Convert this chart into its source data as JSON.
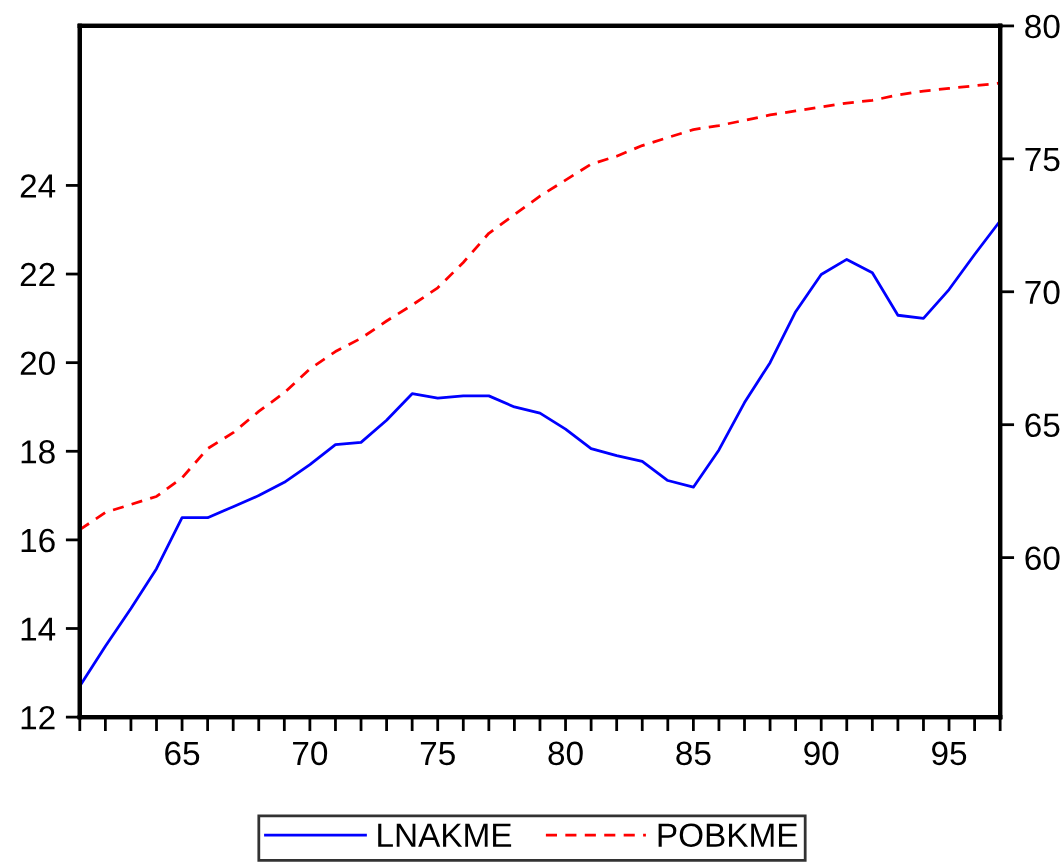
{
  "chart_data": {
    "type": "line",
    "x": [
      61,
      62,
      63,
      64,
      65,
      66,
      67,
      68,
      69,
      70,
      71,
      72,
      73,
      74,
      75,
      76,
      77,
      78,
      79,
      80,
      81,
      82,
      83,
      84,
      85,
      86,
      87,
      88,
      89,
      90,
      91,
      92,
      93,
      94,
      95,
      96,
      97
    ],
    "series": [
      {
        "name": "LNAKME",
        "color": "#0000ff",
        "line_style": "solid",
        "values": [
          12.7,
          13.6,
          14.45,
          15.35,
          16.5,
          16.5,
          16.75,
          17.0,
          17.3,
          17.7,
          18.15,
          18.2,
          18.7,
          19.3,
          19.2,
          19.25,
          19.25,
          19.0,
          18.86,
          18.5,
          18.06,
          17.9,
          17.77,
          17.34,
          17.19,
          18.03,
          19.1,
          20.0,
          21.15,
          21.99,
          22.33,
          22.03,
          21.07,
          21.0,
          21.65,
          22.44,
          23.2
        ]
      },
      {
        "name": "POBKME",
        "color": "#ff0000",
        "line_style": "dashed",
        "axis": "y2",
        "values": [
          61.05,
          61.7,
          62.0,
          62.3,
          63.0,
          64.1,
          64.7,
          65.5,
          66.2,
          67.1,
          67.75,
          68.25,
          68.9,
          69.5,
          70.15,
          71.1,
          72.2,
          72.9,
          73.6,
          74.2,
          74.8,
          75.1,
          75.5,
          75.8,
          76.1,
          76.25,
          76.45,
          76.65,
          76.8,
          76.95,
          77.1,
          77.2,
          77.4,
          77.55,
          77.65,
          77.75,
          77.85
        ]
      }
    ],
    "xlim": [
      61,
      97
    ],
    "xticks": [
      {
        "value": 61,
        "label": null
      },
      {
        "value": 62,
        "label": null
      },
      {
        "value": 63,
        "label": null
      },
      {
        "value": 64,
        "label": null
      },
      65,
      {
        "value": 66,
        "label": null
      },
      {
        "value": 67,
        "label": null
      },
      {
        "value": 68,
        "label": null
      },
      {
        "value": 69,
        "label": null
      },
      70,
      {
        "value": 71,
        "label": null
      },
      {
        "value": 72,
        "label": null
      },
      {
        "value": 73,
        "label": null
      },
      {
        "value": 74,
        "label": null
      },
      75,
      {
        "value": 76,
        "label": null
      },
      {
        "value": 77,
        "label": null
      },
      {
        "value": 78,
        "label": null
      },
      {
        "value": 79,
        "label": null
      },
      80,
      {
        "value": 81,
        "label": null
      },
      {
        "value": 82,
        "label": null
      },
      {
        "value": 83,
        "label": null
      },
      {
        "value": 84,
        "label": null
      },
      85,
      {
        "value": 86,
        "label": null
      },
      {
        "value": 87,
        "label": null
      },
      {
        "value": 88,
        "label": null
      },
      {
        "value": 89,
        "label": null
      },
      90,
      {
        "value": 91,
        "label": null
      },
      {
        "value": 92,
        "label": null
      },
      {
        "value": 93,
        "label": null
      },
      {
        "value": 94,
        "label": null
      },
      95,
      {
        "value": 96,
        "label": null
      },
      {
        "value": 97,
        "label": null
      }
    ],
    "ylim": [
      12,
      27.6
    ],
    "yticks": [
      12,
      14,
      16,
      18,
      20,
      22,
      24
    ],
    "y2lim": [
      54,
      80
    ],
    "y2ticks": [
      60,
      65,
      70,
      75,
      80
    ],
    "grid": false,
    "legend": "bottom",
    "marker": "none"
  }
}
